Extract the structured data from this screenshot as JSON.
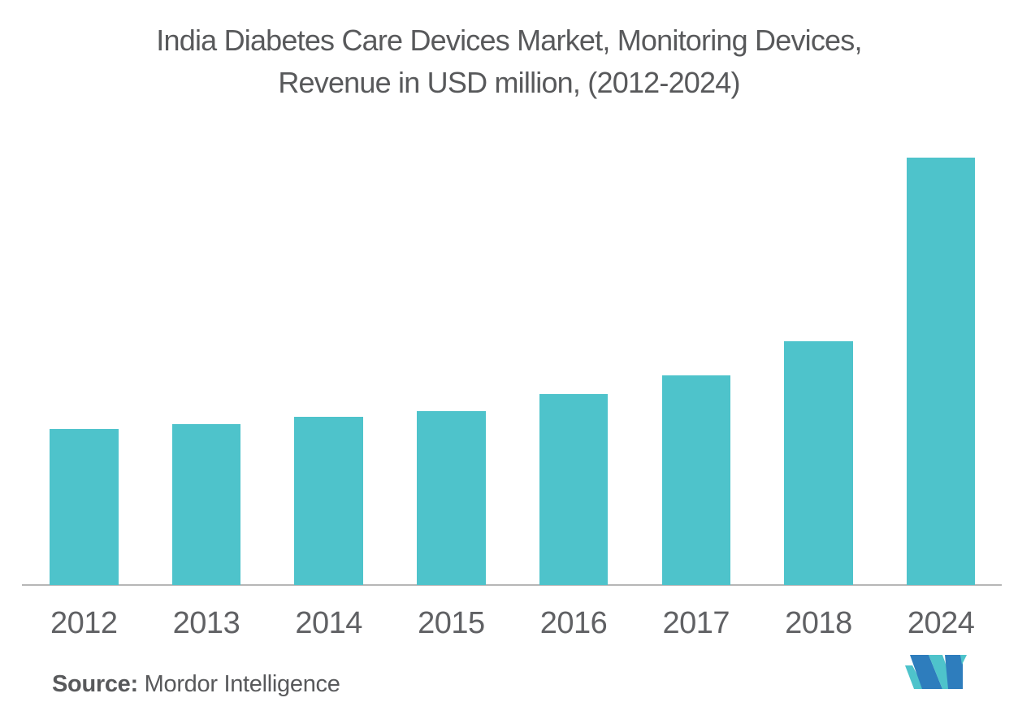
{
  "title": {
    "line1": "India Diabetes Care Devices Market, Monitoring Devices,",
    "line2": "Revenue in USD million, (2012-2024)"
  },
  "source": {
    "label": "Source:",
    "text": " Mordor Intelligence"
  },
  "logo": {
    "name": "mordor-intelligence-logo-m-mark"
  },
  "colors": {
    "bar": "#4ec3cb",
    "axis_line": "#b6b7b7",
    "title_text": "#58595b",
    "tick_text": "#606164",
    "logo_blue": "#2e7dbd",
    "logo_teal": "#4ec3cb"
  },
  "chart_data": {
    "type": "bar",
    "title": "India Diabetes Care Devices Market, Monitoring Devices, Revenue in USD million, (2012-2024)",
    "xlabel": "",
    "ylabel": "Revenue in USD million",
    "categories": [
      "2012",
      "2013",
      "2014",
      "2015",
      "2016",
      "2017",
      "2018",
      "2024"
    ],
    "values": [
      192,
      198,
      207,
      214,
      235,
      258,
      300,
      526
    ],
    "values_note": "no numeric y-axis, gridlines or data labels are shown; values are relative bar heights measured in pixels",
    "ylim": [
      0,
      526
    ],
    "grid": false,
    "legend": false,
    "y_axis_visible": false
  }
}
